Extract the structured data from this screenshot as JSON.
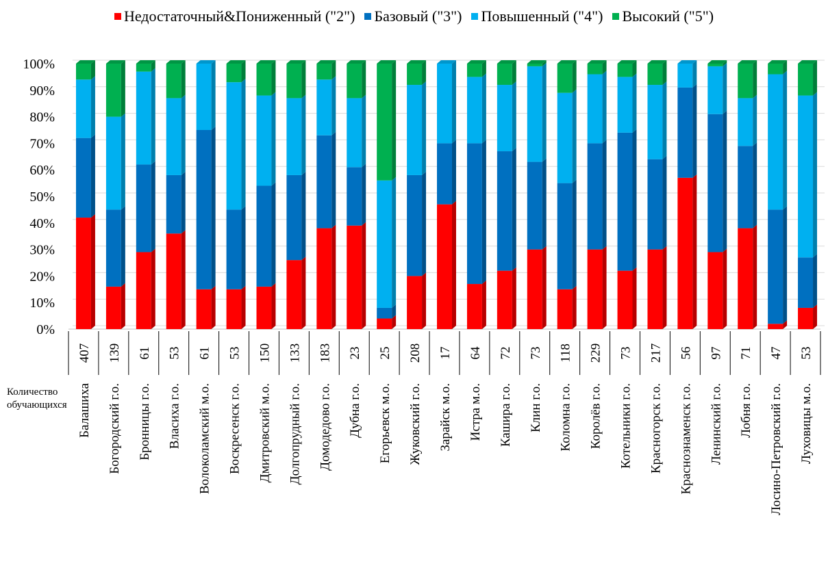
{
  "chart_data": {
    "type": "bar",
    "stacked": "percent",
    "categories": [
      "Балашиха",
      "Богородский г.о.",
      "Бронницы г.о.",
      "Власиха г.о.",
      "Волоколамский м.о.",
      "Воскресенск г.о.",
      "Дмитровский м.о.",
      "Долгопрудный г.о.",
      "Домодедово г.о.",
      "Дубна г.о.",
      "Егорьевск м.о.",
      "Жуковский г.о.",
      "Зарайск м.о.",
      "Истра м.о.",
      "Кашира г.о.",
      "Клин г.о.",
      "Коломна г.о.",
      "Королёв г.о.",
      "Котельники г.о.",
      "Красногорск г.о.",
      "Краснознаменск г.о.",
      "Ленинский г.о.",
      "Лобня г.о.",
      "Лосино-Петровский г.о.",
      "Луховицы м.о."
    ],
    "counts": [
      "407",
      "139",
      "61",
      "53",
      "61",
      "53",
      "150",
      "133",
      "183",
      "23",
      "25",
      "208",
      "17",
      "64",
      "72",
      "73",
      "118",
      "229",
      "73",
      "217",
      "56",
      "97",
      "71",
      "47",
      "53"
    ],
    "series": [
      {
        "name": "Недостаточный&Пониженный (\"2\")",
        "color": "#ff0000",
        "values": [
          42,
          16,
          29,
          36,
          15,
          15,
          16,
          26,
          38,
          39,
          4,
          20,
          47,
          17,
          22,
          30,
          15,
          30,
          22,
          30,
          57,
          29,
          38,
          2,
          8
        ]
      },
      {
        "name": "Базовый (\"3\")",
        "color": "#0070c0",
        "values": [
          30,
          29,
          33,
          22,
          60,
          30,
          38,
          32,
          35,
          22,
          4,
          38,
          23,
          53,
          45,
          33,
          40,
          40,
          52,
          34,
          34,
          52,
          31,
          43,
          19
        ]
      },
      {
        "name": "Повышенный (\"4\")",
        "color": "#00b0f0",
        "values": [
          22,
          35,
          35,
          29,
          25,
          48,
          34,
          29,
          21,
          26,
          48,
          34,
          30,
          25,
          25,
          36,
          34,
          26,
          21,
          28,
          9,
          18,
          18,
          51,
          61
        ]
      },
      {
        "name": "Высокий (\"5\")",
        "color": "#00b050",
        "values": [
          6,
          20,
          3,
          13,
          0,
          7,
          12,
          13,
          6,
          13,
          44,
          8,
          0,
          5,
          8,
          1,
          11,
          4,
          5,
          8,
          0,
          1,
          13,
          4,
          12
        ]
      }
    ],
    "y_ticks": [
      "0%",
      "10%",
      "20%",
      "30%",
      "40%",
      "50%",
      "60%",
      "70%",
      "80%",
      "90%",
      "100%"
    ],
    "ylim": [
      0,
      100
    ],
    "grid": true,
    "legend_position": "top",
    "count_row_label": "Количество обучающихся"
  }
}
